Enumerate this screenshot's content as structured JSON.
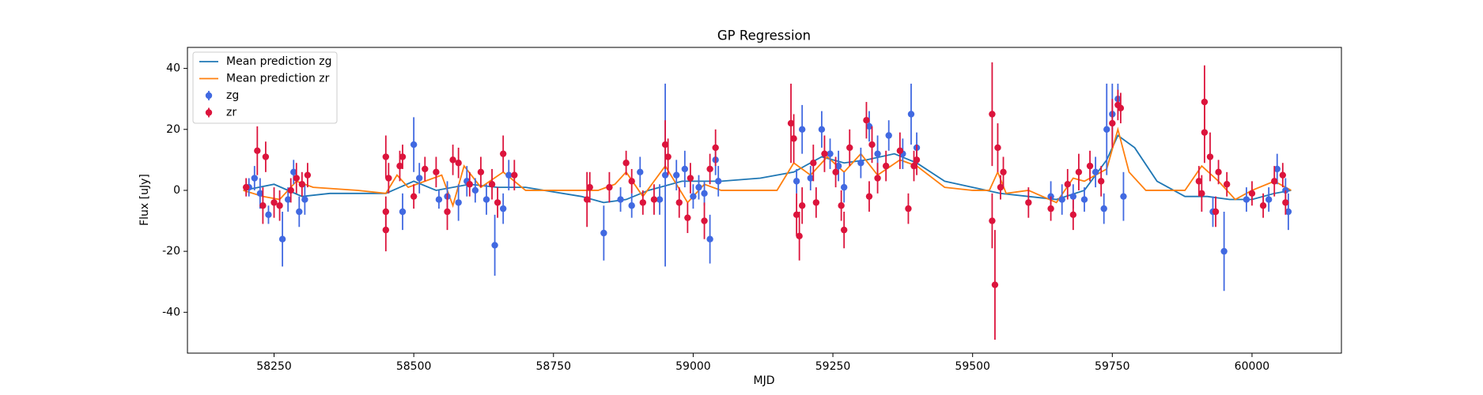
{
  "chart_data": {
    "type": "scatter",
    "title": "GP Regression",
    "x_label": "MJD",
    "y_label": "Flux [uJy]",
    "xlim": [
      58095,
      60160
    ],
    "ylim": [
      -53.4,
      46.9
    ],
    "xticks": [
      58250,
      58500,
      58750,
      59000,
      59250,
      59500,
      59750,
      60000
    ],
    "yticks": [
      -40,
      -20,
      0,
      20,
      40
    ],
    "legend": "upper left",
    "series": [
      {
        "name": "Mean prediction zg",
        "type": "line",
        "color": "#1f77b4",
        "x": [
          58195,
          58250,
          58300,
          58350,
          58450,
          58500,
          58540,
          58600,
          58650,
          58700,
          58800,
          58840,
          58880,
          58920,
          58980,
          59050,
          59120,
          59180,
          59230,
          59270,
          59310,
          59360,
          59400,
          59450,
          59500,
          59550,
          59600,
          59650,
          59700,
          59740,
          59760,
          59790,
          59830,
          59880,
          59920,
          59960,
          60000,
          60040,
          60070
        ],
        "values": [
          0,
          2,
          -2,
          -1,
          -1,
          3,
          0,
          2,
          1,
          1,
          -2,
          -4,
          -3,
          0,
          3,
          3,
          4,
          6,
          11,
          9,
          10,
          12,
          9,
          3,
          1,
          -1,
          -2,
          -3,
          0,
          10,
          18,
          14,
          3,
          -2,
          -2,
          -3,
          -3,
          -1,
          0
        ]
      },
      {
        "name": "Mean prediction zr",
        "type": "line",
        "color": "#ff7f0e",
        "x": [
          58195,
          58230,
          58260,
          58290,
          58320,
          58400,
          58450,
          58470,
          58490,
          58520,
          58550,
          58570,
          58590,
          58620,
          58660,
          58700,
          58800,
          58830,
          58860,
          58880,
          58910,
          58950,
          58990,
          59020,
          59050,
          59150,
          59180,
          59210,
          59240,
          59270,
          59300,
          59330,
          59370,
          59400,
          59450,
          59500,
          59530,
          59545,
          59560,
          59600,
          59650,
          59680,
          59700,
          59740,
          59760,
          59780,
          59810,
          59880,
          59910,
          59940,
          59970,
          60000,
          60040,
          60070
        ],
        "values": [
          0,
          -2,
          -3,
          3,
          1,
          0,
          -1,
          5,
          1,
          3,
          5,
          -5,
          8,
          1,
          6,
          0,
          0,
          0,
          2,
          6,
          -2,
          8,
          -4,
          2,
          0,
          0,
          9,
          5,
          11,
          6,
          12,
          5,
          10,
          8,
          1,
          0,
          0,
          6,
          -1,
          0,
          -4,
          4,
          3,
          7,
          20,
          6,
          0,
          0,
          8,
          3,
          -3,
          0,
          3,
          0
        ]
      },
      {
        "name": "zg",
        "type": "errorbar",
        "color": "#4169e1",
        "x": [
          58205,
          58215,
          58225,
          58240,
          58265,
          58275,
          58285,
          58295,
          58305,
          58480,
          58500,
          58510,
          58545,
          58560,
          58580,
          58595,
          58610,
          58630,
          58645,
          58660,
          58670,
          58840,
          58870,
          58890,
          58905,
          58940,
          58950,
          58970,
          58985,
          59000,
          59010,
          59020,
          59030,
          59040,
          59045,
          59185,
          59195,
          59210,
          59230,
          59245,
          59260,
          59270,
          59300,
          59315,
          59330,
          59350,
          59375,
          59390,
          59400,
          59640,
          59660,
          59680,
          59700,
          59720,
          59735,
          59740,
          59750,
          59760,
          59770,
          59930,
          59950,
          59990,
          60030,
          60045,
          60060,
          60065
        ],
        "values": [
          1,
          4,
          -1,
          -8,
          -16,
          -3,
          6,
          -7,
          -3,
          -7,
          15,
          4,
          -3,
          -2,
          -4,
          3,
          0,
          -3,
          -18,
          -6,
          5,
          -14,
          -3,
          -5,
          6,
          -3,
          5,
          5,
          7,
          -2,
          1,
          -1,
          -16,
          10,
          3,
          3,
          20,
          4,
          20,
          12,
          8,
          1,
          9,
          21,
          12,
          18,
          12,
          25,
          14,
          -2,
          -3,
          -2,
          -3,
          6,
          -6,
          20,
          25,
          30,
          -2,
          -7,
          -20,
          -3,
          -3,
          7,
          0,
          -7
        ],
        "errors": [
          3,
          4,
          5,
          3,
          9,
          4,
          4,
          5,
          5,
          6,
          9,
          5,
          3,
          5,
          6,
          5,
          4,
          5,
          10,
          5,
          5,
          9,
          4,
          4,
          5,
          5,
          30,
          5,
          6,
          4,
          4,
          4,
          8,
          5,
          5,
          4,
          8,
          4,
          6,
          5,
          5,
          5,
          5,
          5,
          6,
          5,
          5,
          10,
          5,
          5,
          5,
          4,
          4,
          5,
          5,
          15,
          10,
          5,
          8,
          5,
          13,
          4,
          4,
          5,
          4,
          6
        ]
      },
      {
        "name": "zr",
        "type": "errorbar",
        "color": "#dc143c",
        "x": [
          58200,
          58220,
          58230,
          58235,
          58250,
          58260,
          58280,
          58290,
          58300,
          58310,
          58450,
          58450,
          58455,
          58450,
          58475,
          58480,
          58500,
          58520,
          58540,
          58560,
          58570,
          58580,
          58600,
          58620,
          58640,
          58650,
          58660,
          58680,
          58810,
          58815,
          58850,
          58880,
          58890,
          58910,
          58930,
          58950,
          58955,
          58975,
          58990,
          58995,
          59020,
          59030,
          59040,
          59175,
          59180,
          59185,
          59190,
          59195,
          59215,
          59220,
          59235,
          59255,
          59265,
          59270,
          59280,
          59310,
          59315,
          59320,
          59330,
          59345,
          59370,
          59385,
          59395,
          59400,
          59535,
          59535,
          59540,
          59545,
          59550,
          59555,
          59600,
          59640,
          59670,
          59680,
          59690,
          59710,
          59730,
          59750,
          59760,
          59765,
          59905,
          59910,
          59915,
          59915,
          59925,
          59935,
          59940,
          59955,
          60000,
          60020,
          60040,
          60055,
          60060
        ],
        "values": [
          1,
          13,
          -5,
          11,
          -4,
          -5,
          0,
          4,
          2,
          5,
          11,
          -13,
          4,
          -7,
          8,
          11,
          -2,
          7,
          6,
          -7,
          10,
          9,
          2,
          6,
          2,
          -4,
          12,
          5,
          -3,
          1,
          1,
          9,
          3,
          -4,
          -3,
          15,
          11,
          -4,
          -9,
          4,
          -10,
          7,
          14,
          22,
          17,
          -8,
          -15,
          -5,
          9,
          -4,
          12,
          6,
          -5,
          -13,
          14,
          23,
          -2,
          15,
          4,
          8,
          13,
          -6,
          8,
          10,
          25,
          -10,
          -31,
          14,
          1,
          6,
          -4,
          -6,
          2,
          -8,
          6,
          8,
          3,
          22,
          28,
          27,
          3,
          -1,
          29,
          19,
          11,
          -7,
          6,
          2,
          -1,
          -5,
          3,
          5,
          -4
        ],
        "errors": [
          3,
          8,
          6,
          5,
          5,
          5,
          4,
          5,
          4,
          4,
          7,
          7,
          5,
          5,
          5,
          4,
          4,
          4,
          5,
          6,
          5,
          5,
          4,
          5,
          5,
          5,
          6,
          5,
          9,
          5,
          5,
          4,
          4,
          4,
          5,
          8,
          6,
          5,
          5,
          5,
          6,
          5,
          6,
          13,
          8,
          7,
          8,
          6,
          6,
          5,
          6,
          5,
          5,
          6,
          6,
          6,
          5,
          6,
          5,
          5,
          6,
          5,
          5,
          5,
          17,
          9,
          18,
          8,
          4,
          5,
          5,
          4,
          5,
          5,
          6,
          5,
          5,
          8,
          5,
          5,
          5,
          6,
          12,
          10,
          8,
          5,
          4,
          4,
          4,
          4,
          5,
          4,
          4
        ]
      }
    ]
  }
}
